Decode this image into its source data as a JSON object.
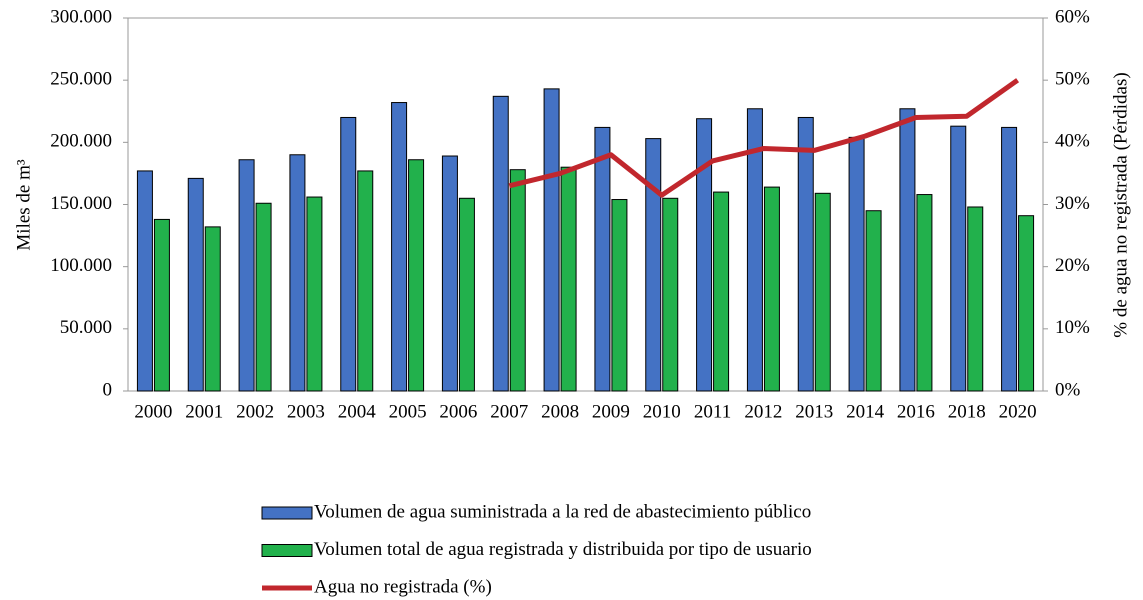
{
  "chart_data": {
    "type": "bar",
    "ylabel": "Miles de m³",
    "y2label": "% de agua no registrada (Pérdidas)",
    "categories": [
      "2000",
      "2001",
      "2002",
      "2003",
      "2004",
      "2005",
      "2006",
      "2007",
      "2008",
      "2009",
      "2010",
      "2011",
      "2012",
      "2013",
      "2014",
      "2016",
      "2018",
      "2020"
    ],
    "series": [
      {
        "name": "Volumen de agua suministrada a la red de abastecimiento público",
        "color": "#4472c4",
        "type": "bar",
        "values": [
          177000,
          171000,
          186000,
          190000,
          220000,
          232000,
          189000,
          237000,
          243000,
          212000,
          203000,
          219000,
          227000,
          220000,
          204000,
          227000,
          213000,
          212000
        ]
      },
      {
        "name": "Volumen total de agua registrada y distribuida por tipo de usuario",
        "color": "#22b14c",
        "type": "bar",
        "values": [
          138000,
          132000,
          151000,
          156000,
          177000,
          186000,
          155000,
          178000,
          180000,
          154000,
          155000,
          160000,
          164000,
          159000,
          145000,
          158000,
          148000,
          141000
        ]
      },
      {
        "name": "Agua no registrada (%)",
        "color": "#c1272d",
        "type": "line",
        "axis": "y2",
        "values": [
          null,
          null,
          null,
          null,
          null,
          null,
          null,
          33,
          35,
          38,
          31.5,
          37,
          39,
          38.7,
          41,
          44,
          44.2,
          50
        ]
      }
    ],
    "ylim": [
      0,
      300000
    ],
    "yticks": [
      0,
      {
        "value": 50000,
        "label": "50.000"
      },
      {
        "value": 100000,
        "label": "100.000"
      },
      {
        "value": 150000,
        "label": "150.000"
      },
      {
        "value": 200000,
        "label": "200.000"
      },
      {
        "value": 250000,
        "label": "250.000"
      },
      {
        "value": 300000,
        "label": "300.000"
      }
    ],
    "y2lim": [
      0,
      60
    ],
    "y2ticks": [
      {
        "value": 0,
        "label": "0%"
      },
      {
        "value": 10,
        "label": "10%"
      },
      {
        "value": 20,
        "label": "20%"
      },
      {
        "value": 30,
        "label": "30%"
      },
      {
        "value": 40,
        "label": "40%"
      },
      {
        "value": 50,
        "label": "50%"
      },
      {
        "value": 60,
        "label": "60%"
      }
    ],
    "legend": "bottom"
  }
}
